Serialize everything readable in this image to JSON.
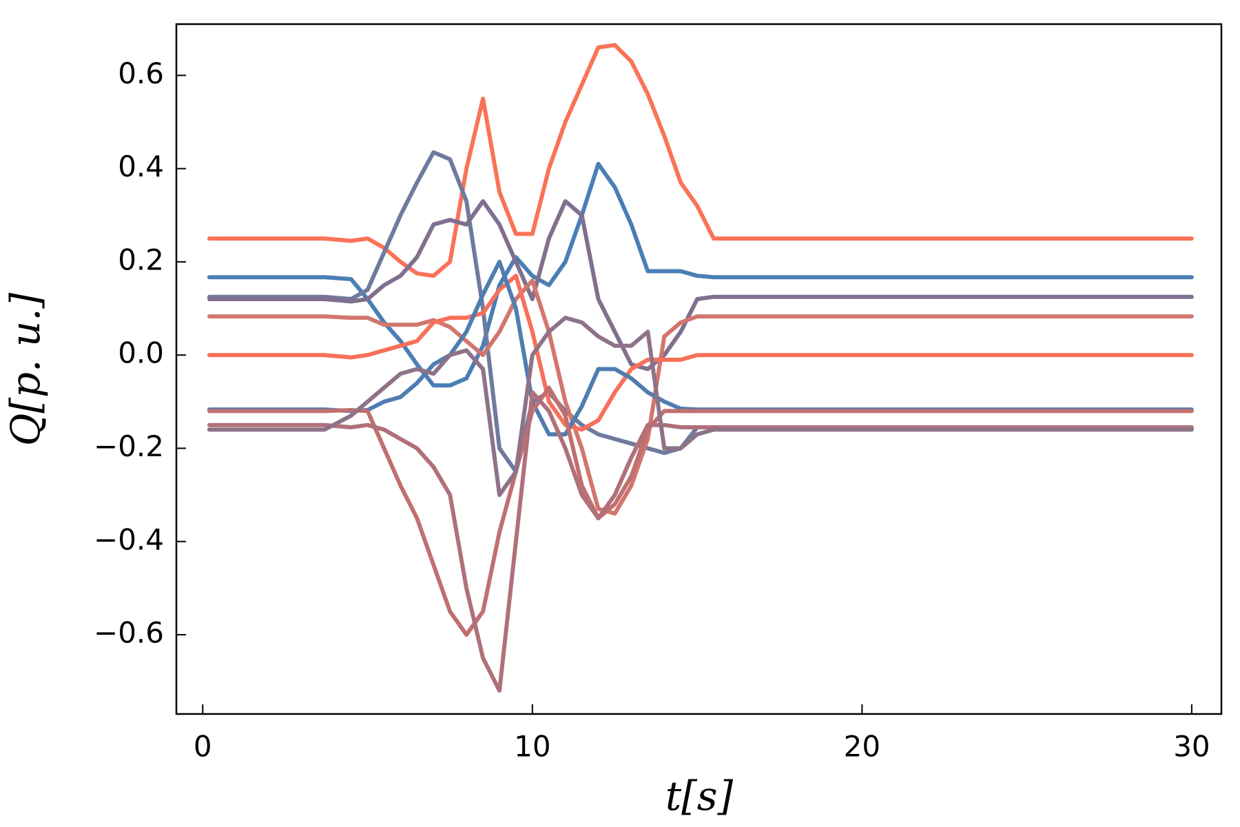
{
  "chart_data": {
    "type": "line",
    "xlabel": "t[s]",
    "ylabel": "Q[p. u.]",
    "xlim": [
      -0.8,
      30.9
    ],
    "ylim": [
      -0.77,
      0.71
    ],
    "xticks": [
      0,
      10,
      20,
      30
    ],
    "yticks": [
      {
        "value": -0.6,
        "label": "−0.6"
      },
      {
        "value": -0.4,
        "label": "−0.4"
      },
      {
        "value": -0.2,
        "label": "−0.2"
      },
      {
        "value": 0,
        "label": "0.0"
      },
      0.2,
      0.4,
      0.6
    ],
    "grid": false,
    "x": [
      0.2,
      3.7,
      4.5,
      5,
      5.5,
      6,
      6.5,
      7,
      7.5,
      8,
      8.5,
      9,
      9.5,
      10,
      10.5,
      11,
      11.5,
      12,
      12.5,
      13,
      13.5,
      14,
      14.5,
      15,
      15.5,
      16,
      30
    ],
    "series": [
      {
        "color": "#fa7358",
        "values": [
          0.25,
          0.25,
          0.245,
          0.25,
          0.23,
          0.2,
          0.175,
          0.17,
          0.2,
          0.4,
          0.55,
          0.35,
          0.26,
          0.26,
          0.4,
          0.5,
          0.58,
          0.66,
          0.665,
          0.63,
          0.56,
          0.47,
          0.37,
          0.32,
          0.25,
          0.25,
          0.25
        ]
      },
      {
        "color": "#4a7fb5",
        "values": [
          0.167,
          0.167,
          0.163,
          0.12,
          0.07,
          0.03,
          -0.02,
          -0.065,
          -0.065,
          -0.05,
          0.02,
          0.15,
          0.21,
          0.17,
          0.15,
          0.2,
          0.3,
          0.41,
          0.36,
          0.28,
          0.18,
          0.18,
          0.18,
          0.17,
          0.167,
          0.167,
          0.167
        ]
      },
      {
        "color": "#6f7a9e",
        "values": [
          0.125,
          0.125,
          0.12,
          0.14,
          0.22,
          0.3,
          0.37,
          0.435,
          0.42,
          0.33,
          0.1,
          -0.2,
          -0.25,
          -0.1,
          -0.08,
          -0.12,
          -0.15,
          -0.17,
          -0.18,
          -0.19,
          -0.2,
          -0.21,
          -0.2,
          -0.155,
          -0.155,
          -0.155,
          -0.155
        ]
      },
      {
        "color": "#806f8e",
        "values": [
          0.12,
          0.12,
          0.115,
          0.12,
          0.15,
          0.17,
          0.21,
          0.28,
          0.29,
          0.28,
          0.33,
          0.28,
          0.2,
          0.12,
          0.25,
          0.33,
          0.3,
          0.12,
          0.05,
          -0.02,
          -0.03,
          0.0,
          0.05,
          0.12,
          0.125,
          0.125,
          0.125
        ]
      },
      {
        "color": "#d2766e",
        "values": [
          0.083,
          0.083,
          0.08,
          0.08,
          0.065,
          0.065,
          0.065,
          0.075,
          0.06,
          0.03,
          0.0,
          0.05,
          0.12,
          0.16,
          0.05,
          -0.1,
          -0.2,
          -0.33,
          -0.34,
          -0.28,
          -0.18,
          0.04,
          0.07,
          0.083,
          0.083,
          0.083,
          0.083
        ]
      },
      {
        "color": "#f7705a",
        "values": [
          0,
          0,
          -0.005,
          0,
          0.01,
          0.02,
          0.03,
          0.07,
          0.08,
          0.08,
          0.09,
          0.14,
          0.17,
          0.05,
          -0.1,
          -0.15,
          -0.16,
          -0.14,
          -0.08,
          -0.03,
          -0.01,
          -0.01,
          -0.01,
          0,
          0,
          0,
          0
        ]
      },
      {
        "color": "#4f7db0",
        "values": [
          -0.117,
          -0.117,
          -0.12,
          -0.118,
          -0.1,
          -0.09,
          -0.06,
          -0.02,
          0.0,
          0.05,
          0.13,
          0.2,
          0.1,
          -0.1,
          -0.17,
          -0.17,
          -0.11,
          -0.03,
          -0.03,
          -0.05,
          -0.08,
          -0.1,
          -0.115,
          -0.117,
          -0.117,
          -0.117,
          -0.117
        ]
      },
      {
        "color": "#c0706f",
        "values": [
          -0.12,
          -0.12,
          -0.118,
          -0.12,
          -0.2,
          -0.28,
          -0.35,
          -0.45,
          -0.55,
          -0.6,
          -0.55,
          -0.38,
          -0.25,
          -0.12,
          -0.07,
          -0.13,
          -0.28,
          -0.35,
          -0.32,
          -0.26,
          -0.16,
          -0.12,
          -0.12,
          -0.12,
          -0.12,
          -0.12,
          -0.12
        ]
      },
      {
        "color": "#b0707a",
        "values": [
          -0.15,
          -0.15,
          -0.155,
          -0.15,
          -0.16,
          -0.18,
          -0.2,
          -0.24,
          -0.3,
          -0.5,
          -0.65,
          -0.72,
          -0.4,
          -0.08,
          -0.12,
          -0.2,
          -0.3,
          -0.35,
          -0.3,
          -0.22,
          -0.15,
          -0.15,
          -0.155,
          -0.155,
          -0.155,
          -0.155,
          -0.155
        ]
      },
      {
        "color": "#8e7388",
        "values": [
          -0.16,
          -0.16,
          -0.13,
          -0.1,
          -0.07,
          -0.04,
          -0.03,
          -0.04,
          0.0,
          0.01,
          -0.03,
          -0.3,
          -0.25,
          0.0,
          0.05,
          0.08,
          0.07,
          0.04,
          0.02,
          0.02,
          0.05,
          -0.2,
          -0.2,
          -0.17,
          -0.16,
          -0.16,
          -0.16
        ]
      }
    ]
  }
}
